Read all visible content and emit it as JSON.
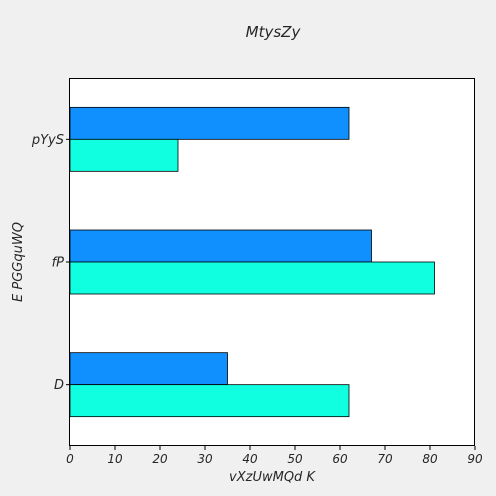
{
  "chart_data": {
    "type": "bar",
    "orientation": "horizontal",
    "title": "MtysZy",
    "xlabel": "vXzUwMQd K",
    "ylabel": "E PGGquWQ",
    "categories": [
      "D",
      "fP",
      "pYyS"
    ],
    "series": [
      {
        "color": "#1090ff",
        "values": [
          35,
          67,
          62
        ]
      },
      {
        "color": "#10ffe0",
        "values": [
          62,
          81,
          24
        ]
      }
    ],
    "xlim": [
      0,
      90
    ],
    "xticks": [
      0,
      10,
      20,
      30,
      40,
      50,
      60,
      70,
      80,
      90
    ],
    "grid": false,
    "legend": "none"
  }
}
